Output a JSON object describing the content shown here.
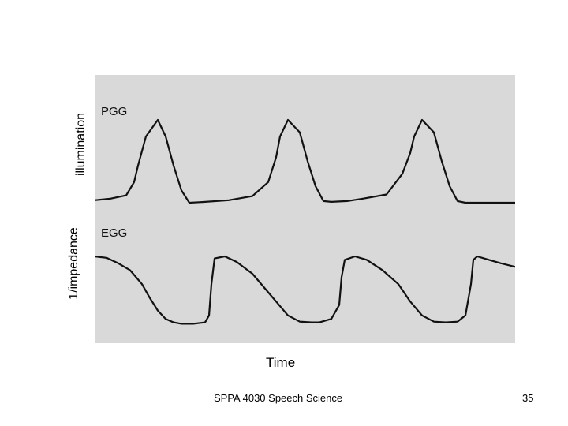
{
  "chart_data": {
    "type": "line",
    "title": "",
    "xlabel": "Time",
    "ylabels": [
      "illumination",
      "1/impedance"
    ],
    "grid": false,
    "series": [
      {
        "name": "PGG",
        "x": [
          0,
          20,
          40,
          50,
          55,
          65,
          80,
          90,
          100,
          110,
          120,
          140,
          170,
          200,
          220,
          230,
          235,
          245,
          260,
          270,
          280,
          290,
          300,
          320,
          340,
          370,
          390,
          400,
          405,
          415,
          430,
          440,
          450,
          460,
          470,
          490,
          533
        ],
        "y": [
          0.03,
          0.05,
          0.09,
          0.25,
          0.45,
          0.8,
          1.0,
          0.8,
          0.45,
          0.15,
          0.0,
          0.01,
          0.03,
          0.08,
          0.25,
          0.55,
          0.8,
          1.0,
          0.85,
          0.5,
          0.2,
          0.02,
          0.01,
          0.02,
          0.05,
          0.1,
          0.35,
          0.6,
          0.8,
          1.0,
          0.85,
          0.5,
          0.2,
          0.02,
          0.0,
          0.0,
          0.0
        ]
      },
      {
        "name": "EGG",
        "x": [
          0,
          15,
          30,
          45,
          60,
          70,
          80,
          90,
          100,
          110,
          125,
          140,
          145,
          148,
          152,
          165,
          180,
          200,
          215,
          230,
          245,
          260,
          275,
          285,
          300,
          310,
          313,
          317,
          330,
          345,
          365,
          385,
          400,
          415,
          430,
          445,
          460,
          470,
          477,
          480,
          485,
          500,
          515,
          533
        ],
        "y": [
          1.0,
          0.98,
          0.9,
          0.8,
          0.6,
          0.4,
          0.22,
          0.1,
          0.05,
          0.03,
          0.03,
          0.05,
          0.15,
          0.6,
          0.97,
          1.0,
          0.92,
          0.75,
          0.55,
          0.35,
          0.15,
          0.06,
          0.05,
          0.05,
          0.1,
          0.3,
          0.7,
          0.95,
          1.0,
          0.95,
          0.8,
          0.6,
          0.35,
          0.15,
          0.06,
          0.05,
          0.06,
          0.15,
          0.6,
          0.95,
          1.0,
          0.95,
          0.9,
          0.85
        ]
      }
    ]
  },
  "footer": {
    "course": "SPPA 4030 Speech Science",
    "slide_number": "35"
  },
  "colors": {
    "plot_background": "#d9d9d9",
    "trace": "#111111"
  }
}
